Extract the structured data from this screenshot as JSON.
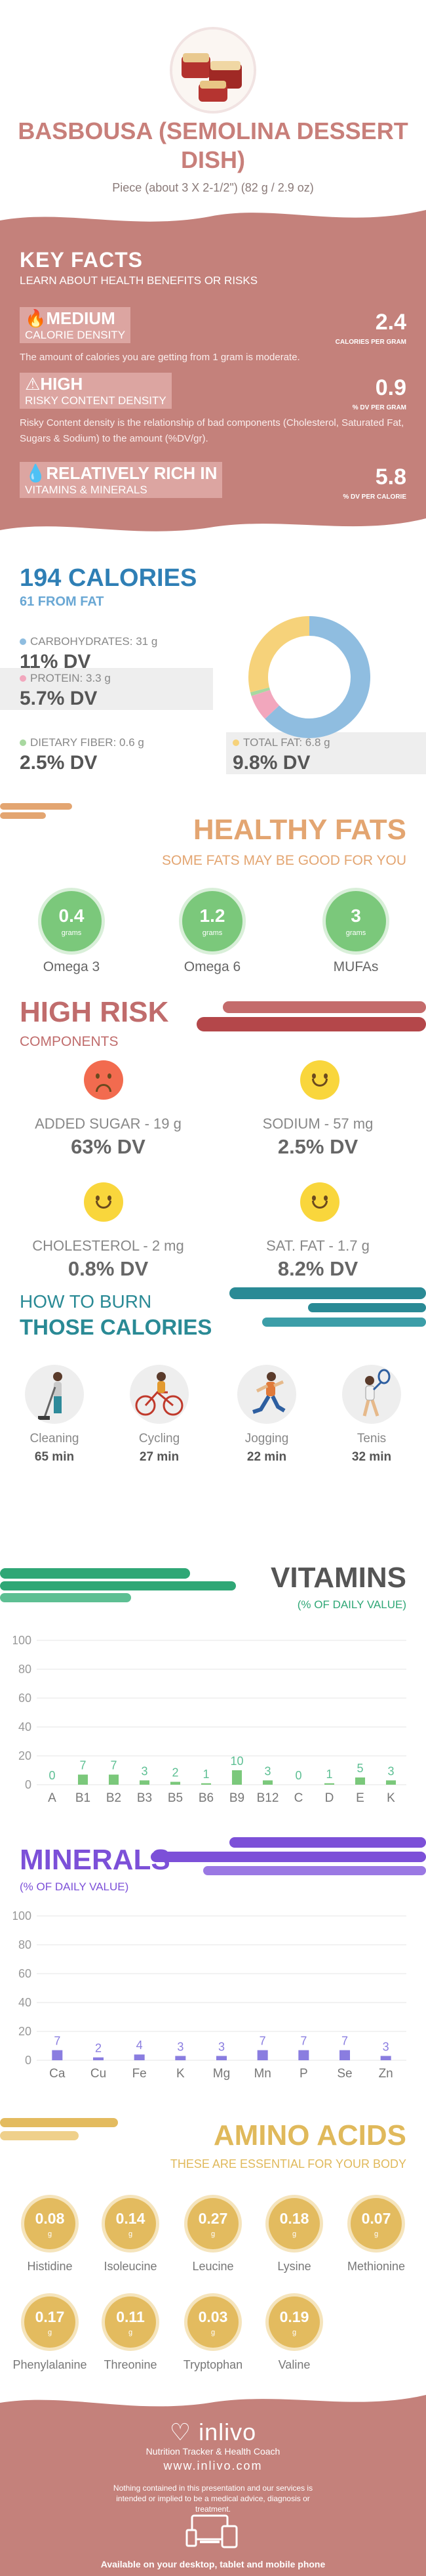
{
  "header": {
    "title": "BASBOUSA (SEMOLINA DESSERT DISH)",
    "serving": "Piece (about 3 X 2-1/2\") (82 g / 2.9 oz)"
  },
  "key_facts": {
    "title": "KEY FACTS",
    "subtitle": "LEARN ABOUT HEALTH BENEFITS OR RISKS",
    "calorie_density": {
      "level": "MEDIUM",
      "label": "CALORIE DENSITY",
      "value": "2.4",
      "unit": "CALORIES PER GRAM",
      "desc": "The amount of calories you are getting from 1 gram is moderate."
    },
    "risky_density": {
      "level": "HIGH",
      "label": "RISKY CONTENT DENSITY",
      "value": "0.9",
      "unit": "% DV PER GRAM",
      "desc": "Risky Content density is the relationship of bad components (Cholesterol, Saturated Fat, Sugars & Sodium) to the amount (%DV/gr)."
    },
    "vitamins": {
      "level": "RELATIVELY RICH  IN",
      "label": "VITAMINS & MINERALS",
      "value": "5.8",
      "unit": "% DV PER CALORIE"
    }
  },
  "calories": {
    "title": "194 CALORIES",
    "from_fat": "61 FROM FAT",
    "carbs": {
      "label": "CARBOHYDRATES: 31 g",
      "dv": "11% DV",
      "color": "#8fbde0"
    },
    "protein": {
      "label": "PROTEIN: 3.3 g",
      "dv": "5.7% DV",
      "color": "#f2a7bd"
    },
    "fiber": {
      "label": "DIETARY FIBER: 0.6 g",
      "dv": "2.5% DV",
      "color": "#a8d8a0"
    },
    "fat": {
      "label": "TOTAL FAT: 6.8 g",
      "dv": "9.8% DV",
      "color": "#f6d27a"
    }
  },
  "chart_data": [
    {
      "type": "pie",
      "title": "",
      "categories": [
        "Carbohydrates",
        "Protein",
        "Dietary fiber",
        "Total fat"
      ],
      "values": [
        63,
        7,
        1,
        29
      ],
      "colors": [
        "#8fbde0",
        "#f2a7bd",
        "#a8d8a0",
        "#f6d27a"
      ]
    },
    {
      "type": "bar",
      "title": "VITAMINS",
      "categories": [
        "A",
        "B1",
        "B2",
        "B3",
        "B5",
        "B6",
        "B9",
        "B12",
        "C",
        "D",
        "E",
        "K"
      ],
      "values": [
        0,
        7,
        7,
        3,
        2,
        1,
        10,
        3,
        0,
        1,
        5,
        3
      ],
      "ylim": [
        0,
        100
      ],
      "yticks": [
        "0",
        "20",
        "40",
        "60",
        "80",
        "100"
      ],
      "color": "#7bc87b"
    },
    {
      "type": "bar",
      "title": "MINERALS",
      "categories": [
        "Ca",
        "Cu",
        "Fe",
        "K",
        "Mg",
        "Mn",
        "P",
        "Se",
        "Zn"
      ],
      "values": [
        7,
        2,
        4,
        3,
        3,
        7,
        7,
        7,
        3
      ],
      "ylim": [
        0,
        100
      ],
      "yticks": [
        "0",
        "20",
        "40",
        "60",
        "80",
        "100"
      ],
      "color": "#8a7de0"
    }
  ],
  "fats": {
    "title": "HEALTHY FATS",
    "subtitle": "SOME FATS MAY BE GOOD FOR YOU",
    "grams_label": "grams",
    "items": [
      {
        "value": "0.4",
        "label": "Omega 3"
      },
      {
        "value": "1.2",
        "label": "Omega 6"
      },
      {
        "value": "3",
        "label": "MUFAs"
      }
    ]
  },
  "risk": {
    "title": "HIGH RISK",
    "subtitle": "COMPONENTS",
    "items": [
      {
        "label": "ADDED SUGAR - 19 g",
        "dv": "63% DV",
        "mood": "sad",
        "color": "#f26b4f"
      },
      {
        "label": "SODIUM - 57 mg",
        "dv": "2.5% DV",
        "mood": "happy",
        "color": "#f9d63c"
      },
      {
        "label": "CHOLESTEROL - 2 mg",
        "dv": "0.8% DV",
        "mood": "happy",
        "color": "#f9d63c"
      },
      {
        "label": "SAT. FAT - 1.7 g",
        "dv": "8.2% DV",
        "mood": "happy",
        "color": "#f9d63c"
      }
    ]
  },
  "burn": {
    "title1": "HOW TO BURN",
    "title2": "THOSE CALORIES",
    "items": [
      {
        "name": "Cleaning",
        "minutes": "65 min",
        "icon": "cleaning-icon"
      },
      {
        "name": "Cycling",
        "minutes": "27 min",
        "icon": "cycling-icon"
      },
      {
        "name": "Jogging",
        "minutes": "22 min",
        "icon": "jogging-icon"
      },
      {
        "name": "Tenis",
        "minutes": "32 min",
        "icon": "tennis-icon"
      }
    ]
  },
  "vitamins": {
    "title": "VITAMINS",
    "subtitle": "(% OF DAILY VALUE)",
    "color": "#2fa776"
  },
  "minerals": {
    "title": "MINERALS",
    "subtitle": "(% OF DAILY VALUE)",
    "color": "#7c50d8"
  },
  "amino": {
    "title": "AMINO ACIDS",
    "subtitle": "THESE ARE ESSENTIAL FOR YOUR BODY",
    "grams_label": "g",
    "items": [
      {
        "value": "0.08",
        "name": "Histidine"
      },
      {
        "value": "0.14",
        "name": "Isoleucine"
      },
      {
        "value": "0.27",
        "name": "Leucine"
      },
      {
        "value": "0.18",
        "name": "Lysine"
      },
      {
        "value": "0.07",
        "name": "Methionine"
      },
      {
        "value": "0.17",
        "name": "Phenylalanine"
      },
      {
        "value": "0.11",
        "name": "Threonine"
      },
      {
        "value": "0.03",
        "name": "Tryptophan"
      },
      {
        "value": "0.19",
        "name": "Valine"
      }
    ]
  },
  "footer": {
    "logo": "inlivo",
    "tagline": "Nutrition Tracker & Health Coach",
    "site": "www.inlivo.com",
    "disclaimer": "Nothing contained in this presentation and our services is intended or implied to be a medical advice, diagnosis or treatment.",
    "available": "Available on your desktop, tablet and mobile phone"
  }
}
